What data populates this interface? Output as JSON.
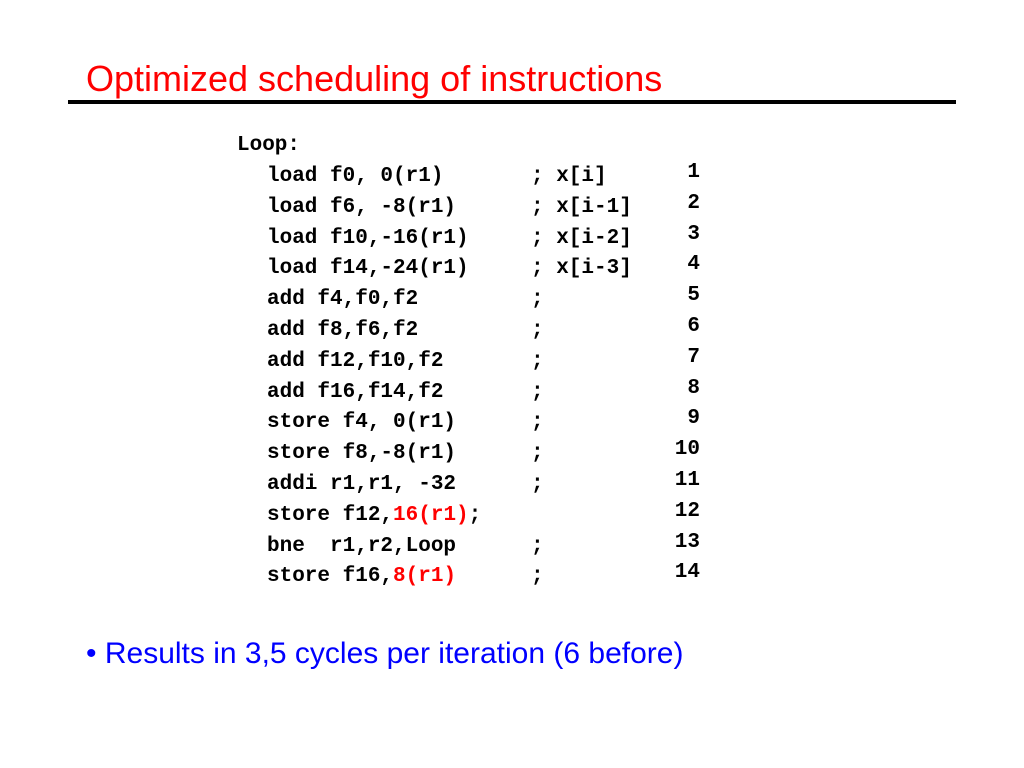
{
  "slide": {
    "title": "Optimized scheduling of instructions",
    "loop_label": "Loop:",
    "lines": [
      {
        "instr": "load f0, 0(r1)",
        "instr_red": "",
        "instr_after": "",
        "comment": "; x[i]",
        "cycle": "1"
      },
      {
        "instr": "load f6, -8(r1)",
        "instr_red": "",
        "instr_after": "",
        "comment": "; x[i-1]",
        "cycle": "2"
      },
      {
        "instr": "load f10,-16(r1)",
        "instr_red": "",
        "instr_after": "",
        "comment": "; x[i-2]",
        "cycle": "3"
      },
      {
        "instr": "load f14,-24(r1)",
        "instr_red": "",
        "instr_after": "",
        "comment": "; x[i-3]",
        "cycle": "4"
      },
      {
        "instr": "add f4,f0,f2",
        "instr_red": "",
        "instr_after": "",
        "comment": ";",
        "cycle": "5"
      },
      {
        "instr": "add f8,f6,f2",
        "instr_red": "",
        "instr_after": "",
        "comment": ";",
        "cycle": "6"
      },
      {
        "instr": "add f12,f10,f2",
        "instr_red": "",
        "instr_after": "",
        "comment": ";",
        "cycle": "7"
      },
      {
        "instr": "add f16,f14,f2",
        "instr_red": "",
        "instr_after": "",
        "comment": ";",
        "cycle": "8"
      },
      {
        "instr": "store f4, 0(r1)",
        "instr_red": "",
        "instr_after": "",
        "comment": ";",
        "cycle": "9"
      },
      {
        "instr": "store f8,-8(r1)",
        "instr_red": "",
        "instr_after": "",
        "comment": ";",
        "cycle": "10"
      },
      {
        "instr": "addi r1,r1, -32",
        "instr_red": "",
        "instr_after": "",
        "comment": ";",
        "cycle": "11"
      },
      {
        "instr": "store f12,",
        "instr_red": "16(r1)",
        "instr_after": ";",
        "comment": "",
        "cycle": "12"
      },
      {
        "instr": "bne  r1,r2,Loop",
        "instr_red": "",
        "instr_after": "",
        "comment": ";",
        "cycle": "13"
      },
      {
        "instr": "store f16,",
        "instr_red": "8(r1)",
        "instr_after": "",
        "comment": ";",
        "cycle": "14"
      }
    ],
    "bullet": "• Results in 3,5 cycles per iteration (6 before)",
    "colors": {
      "title": "#ff0000",
      "bullet": "#0000ff",
      "highlight": "#ff0000",
      "rule": "#000000"
    }
  }
}
